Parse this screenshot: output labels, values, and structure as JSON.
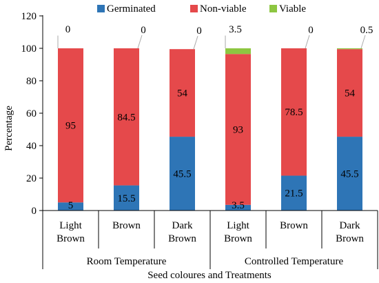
{
  "chart_data": {
    "type": "bar",
    "stacked": true,
    "ylabel": "Percentage",
    "xlabel": "Seed coloures and Treatments",
    "ylim": [
      0,
      120
    ],
    "yticks": [
      "0",
      "20",
      "40",
      "60",
      "80",
      "100",
      "120"
    ],
    "categories": [
      [
        "Light",
        "Brown"
      ],
      [
        "Brown"
      ],
      [
        "Dark",
        "Brown"
      ],
      [
        "Light",
        "Brown"
      ],
      [
        "Brown"
      ],
      [
        "Dark",
        "Brown"
      ]
    ],
    "groups": [
      {
        "label": "Room Temperature",
        "span": [
          0,
          2
        ]
      },
      {
        "label": "Controlled Temperature",
        "span": [
          3,
          5
        ]
      }
    ],
    "series": [
      {
        "name": "Germinated",
        "color": "#2e75b6",
        "values": [
          5,
          15.5,
          45.5,
          3.5,
          21.5,
          45.5
        ],
        "labels": [
          "5",
          "15.5",
          "45.5",
          "3.5",
          "21.5",
          "45.5"
        ]
      },
      {
        "name": "Non-viable",
        "color": "#e5494b",
        "values": [
          95,
          84.5,
          54,
          93,
          78.5,
          54
        ],
        "labels": [
          "95",
          "84.5",
          "54",
          "93",
          "78.5",
          "54"
        ]
      },
      {
        "name": "Viable",
        "color": "#8dc641",
        "values": [
          0,
          0,
          0,
          3.5,
          0,
          0.5
        ],
        "labels": [
          "0",
          "0",
          "0",
          "3.5",
          "0",
          "0.5"
        ]
      }
    ],
    "legend_position": "top",
    "grid": false
  }
}
